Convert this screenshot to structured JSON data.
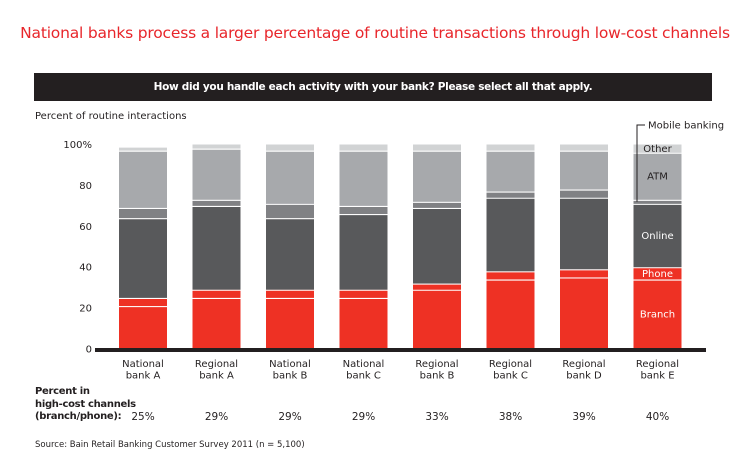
{
  "chart_data": {
    "type": "bar",
    "stacked": true,
    "title": "National banks process a larger percentage of routine transactions through low-cost channels",
    "subtitle": "How did you handle each activity with your bank? Please select all that apply.",
    "ylabel": "Percent of routine interactions",
    "xlabel": "",
    "ylim": [
      0,
      100
    ],
    "yticks": [
      "0",
      "20",
      "40",
      "60",
      "80",
      "100%"
    ],
    "ytick_values": [
      0,
      20,
      40,
      60,
      80,
      100
    ],
    "grid": false,
    "categories": [
      [
        "National",
        "bank A"
      ],
      [
        "Regional",
        "bank A"
      ],
      [
        "National",
        "bank B"
      ],
      [
        "National",
        "bank C"
      ],
      [
        "Regional",
        "bank B"
      ],
      [
        "Regional",
        "bank C"
      ],
      [
        "Regional",
        "bank D"
      ],
      [
        "Regional",
        "bank E"
      ]
    ],
    "series": [
      {
        "name": "Branch",
        "color": "#ee3124",
        "values": [
          21,
          25,
          25,
          25,
          29,
          34,
          35,
          34
        ]
      },
      {
        "name": "Phone",
        "color": "#ee3124",
        "values": [
          4,
          4,
          4,
          4,
          3,
          4,
          4,
          6
        ]
      },
      {
        "name": "Online",
        "color": "#58595b",
        "values": [
          39,
          41,
          35,
          37,
          37,
          36,
          35,
          31
        ]
      },
      {
        "name": "Mobile banking",
        "color": "#808184",
        "values": [
          5,
          3,
          7,
          4,
          3,
          3,
          4,
          2
        ]
      },
      {
        "name": "ATM",
        "color": "#a7a9ac",
        "values": [
          28,
          25,
          26,
          27,
          25,
          20,
          19,
          23
        ]
      },
      {
        "name": "Other",
        "color": "#d1d3d4",
        "values": [
          2,
          2,
          3,
          3,
          3,
          3,
          3,
          4
        ]
      }
    ],
    "legend": "inline labels on last bar (Regional bank E)",
    "segment_labels": {
      "Branch": "Branch",
      "Phone": "Phone",
      "Online": "Online",
      "ATM": "ATM",
      "Other": "Other",
      "Mobile banking": "Mobile banking"
    },
    "high_cost": {
      "label_lines": [
        "Percent in",
        "high-cost channels",
        "(branch/phone):"
      ],
      "values": [
        "25%",
        "29%",
        "29%",
        "29%",
        "33%",
        "38%",
        "39%",
        "40%"
      ]
    },
    "source": "Source: Bain Retail Banking Customer Survey 2011 (n = 5,100)"
  }
}
